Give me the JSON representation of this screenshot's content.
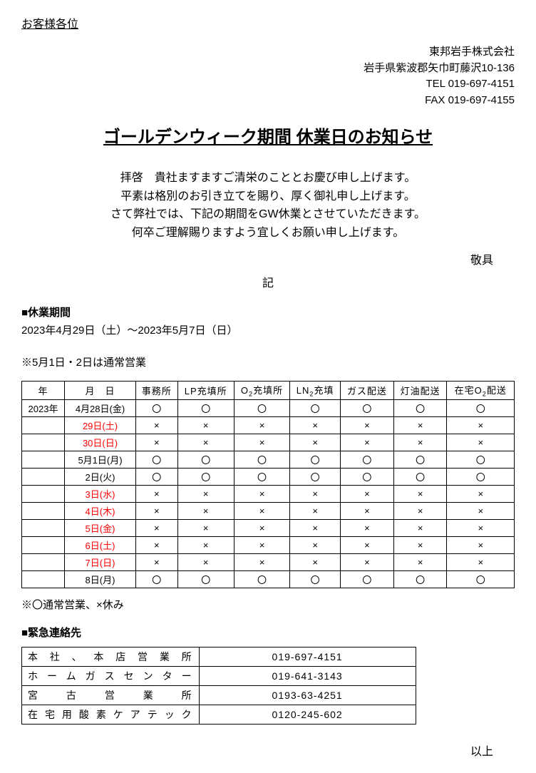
{
  "addressee": "お客様各位",
  "sender": {
    "company": "東邦岩手株式会社",
    "address": "岩手県紫波郡矢巾町藤沢10-136",
    "tel": "TEL 019-697-4151",
    "fax": "FAX 019-697-4155"
  },
  "title": "ゴールデンウィーク期間 休業日のお知らせ",
  "greeting": [
    "拝啓　貴社ますますご清栄のこととお慶び申し上げます。",
    "平素は格別のお引き立てを賜り、厚く御礼申し上げます。",
    "さて弊社では、下記の期間をGW休業とさせていただきます。",
    "何卒ご理解賜りますよう宜しくお願い申し上げます。"
  ],
  "closing_word": "敬具",
  "marker": "記",
  "period_heading": "■休業期間",
  "period_text": "2023年4月29日（土）～2023年5月7日（日）",
  "business_note": "※5月1日・2日は通常営業",
  "schedule": {
    "headers": [
      "年",
      "月　日",
      "事務所",
      "LP充填所",
      "O₂充填所",
      "LN₂充填",
      "ガス配送",
      "灯油配送",
      "在宅O₂配送"
    ],
    "rows": [
      {
        "year": "2023年",
        "date": "4月28日(金)",
        "red": false,
        "cells": [
          "〇",
          "〇",
          "〇",
          "〇",
          "〇",
          "〇",
          "〇"
        ]
      },
      {
        "year": "",
        "date": "29日(土)",
        "red": true,
        "cells": [
          "×",
          "×",
          "×",
          "×",
          "×",
          "×",
          "×"
        ]
      },
      {
        "year": "",
        "date": "30日(日)",
        "red": true,
        "cells": [
          "×",
          "×",
          "×",
          "×",
          "×",
          "×",
          "×"
        ]
      },
      {
        "year": "",
        "date": "5月1日(月)",
        "red": false,
        "cells": [
          "〇",
          "〇",
          "〇",
          "〇",
          "〇",
          "〇",
          "〇"
        ]
      },
      {
        "year": "",
        "date": "2日(火)",
        "red": false,
        "cells": [
          "〇",
          "〇",
          "〇",
          "〇",
          "〇",
          "〇",
          "〇"
        ]
      },
      {
        "year": "",
        "date": "3日(水)",
        "red": true,
        "cells": [
          "×",
          "×",
          "×",
          "×",
          "×",
          "×",
          "×"
        ]
      },
      {
        "year": "",
        "date": "4日(木)",
        "red": true,
        "cells": [
          "×",
          "×",
          "×",
          "×",
          "×",
          "×",
          "×"
        ]
      },
      {
        "year": "",
        "date": "5日(金)",
        "red": true,
        "cells": [
          "×",
          "×",
          "×",
          "×",
          "×",
          "×",
          "×"
        ]
      },
      {
        "year": "",
        "date": "6日(土)",
        "red": true,
        "cells": [
          "×",
          "×",
          "×",
          "×",
          "×",
          "×",
          "×"
        ]
      },
      {
        "year": "",
        "date": "7日(日)",
        "red": true,
        "cells": [
          "×",
          "×",
          "×",
          "×",
          "×",
          "×",
          "×"
        ]
      },
      {
        "year": "",
        "date": "8日(月)",
        "red": false,
        "cells": [
          "〇",
          "〇",
          "〇",
          "〇",
          "〇",
          "〇",
          "〇"
        ]
      }
    ]
  },
  "legend": "※〇通常営業、×休み",
  "contacts_heading": "■緊急連絡先",
  "contacts": [
    {
      "name": "本社、本店営業所",
      "phone": "019-697-4151"
    },
    {
      "name": "ホームガスセンター",
      "phone": "019-641-3143"
    },
    {
      "name": "宮古営業所",
      "phone": "0193-63-4251"
    },
    {
      "name": "在宅用酸素ケアテック",
      "phone": "0120-245-602"
    }
  ],
  "end": "以上",
  "colors": {
    "text": "#000000",
    "holiday": "#ff0000",
    "background": "#ffffff",
    "border": "#000000"
  }
}
